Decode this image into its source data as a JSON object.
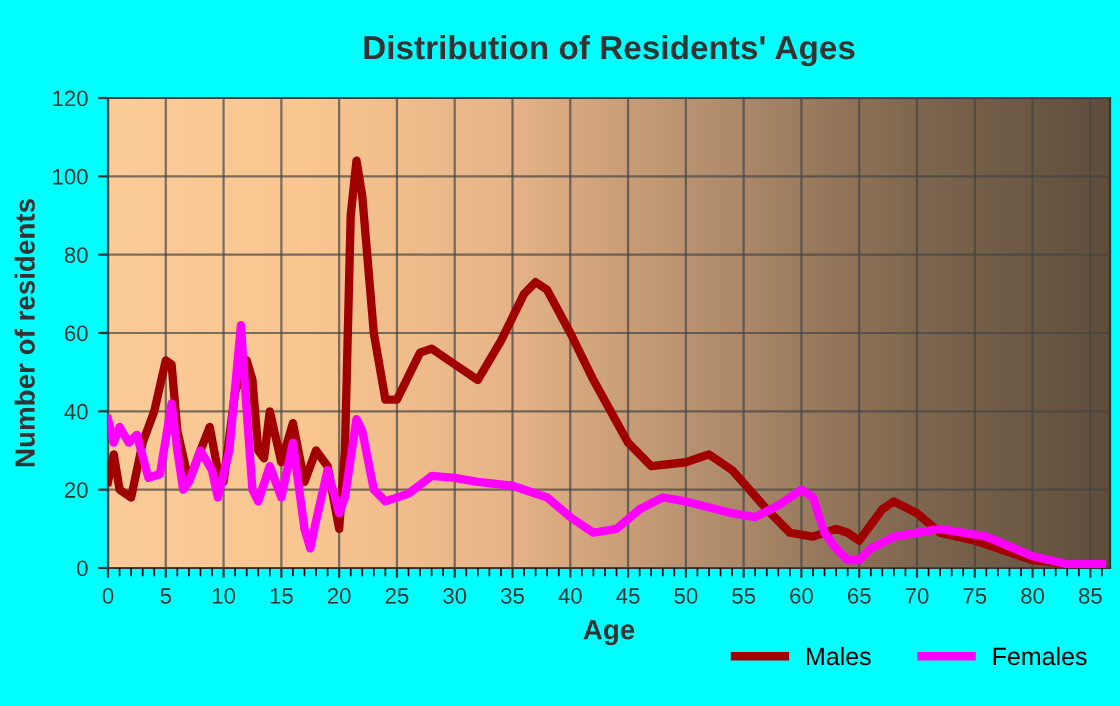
{
  "chart_data": {
    "type": "line",
    "title": "Distribution of Residents' Ages",
    "xlabel": "Age",
    "ylabel": "Number of residents",
    "xlim": [
      0,
      86.7
    ],
    "xticks": [
      0,
      5,
      10,
      15,
      20,
      25,
      30,
      35,
      40,
      45,
      50,
      55,
      60,
      65,
      70,
      75,
      80,
      85
    ],
    "ylim": [
      0,
      120
    ],
    "yticks": [
      0,
      20,
      40,
      60,
      80,
      100,
      120
    ],
    "grid": true,
    "legend": "bottom",
    "line_style": "solid",
    "marker": "none",
    "series": [
      {
        "name": "Males",
        "color": "#a00000",
        "x": [
          0,
          0.5,
          1,
          2,
          3,
          4,
          5,
          5.5,
          6,
          7,
          8,
          8.8,
          9.5,
          10,
          11,
          12,
          12.5,
          13,
          13.5,
          14,
          15,
          16,
          17,
          18,
          19,
          20,
          20.5,
          21,
          21.5,
          22,
          23,
          24,
          25,
          27,
          28,
          30,
          32,
          34,
          36,
          37,
          38,
          40,
          42,
          45,
          47,
          50,
          52,
          54,
          57,
          59,
          61,
          63,
          64,
          65,
          67,
          68,
          70,
          72,
          75,
          78,
          80,
          83,
          86
        ],
        "values": [
          22,
          29,
          20,
          18,
          32,
          40,
          53,
          52,
          35,
          22,
          30,
          36,
          25,
          22,
          45,
          53,
          48,
          30,
          28,
          40,
          27,
          37,
          22,
          30,
          26,
          10,
          30,
          90,
          104,
          95,
          60,
          43,
          43,
          55,
          56,
          52,
          48,
          58,
          70,
          73,
          71,
          60,
          48,
          32,
          26,
          27,
          29,
          25,
          15,
          9,
          8,
          10,
          9,
          7,
          15,
          17,
          14,
          9,
          7,
          4,
          2,
          1,
          1
        ]
      },
      {
        "name": "Females",
        "color": "#ff00ff",
        "x": [
          0,
          0.5,
          1,
          1.8,
          2.5,
          3.5,
          4.5,
          5.5,
          6,
          6.5,
          7,
          8,
          9,
          9.5,
          10.5,
          11.5,
          12,
          12.5,
          13,
          14,
          15,
          16,
          17,
          17.5,
          18,
          19,
          20,
          20.5,
          21.5,
          22,
          23,
          24,
          26,
          28,
          30,
          32,
          35,
          38,
          40,
          42,
          44,
          46,
          48,
          50,
          54,
          56,
          58,
          60,
          61,
          62,
          63,
          64,
          65,
          66,
          68,
          72,
          76,
          80,
          83,
          86
        ],
        "values": [
          38,
          32,
          36,
          32,
          34,
          23,
          24,
          42,
          30,
          20,
          22,
          30,
          25,
          18,
          30,
          62,
          40,
          20,
          17,
          26,
          18,
          32,
          10,
          5,
          12,
          25,
          14,
          18,
          38,
          35,
          20,
          17,
          19,
          23.5,
          23,
          22,
          21,
          18,
          13,
          9,
          10,
          15,
          18,
          17,
          14,
          13,
          16,
          20,
          18,
          9,
          5,
          2,
          2,
          5,
          8,
          10,
          8,
          3,
          1,
          1
        ]
      }
    ]
  }
}
